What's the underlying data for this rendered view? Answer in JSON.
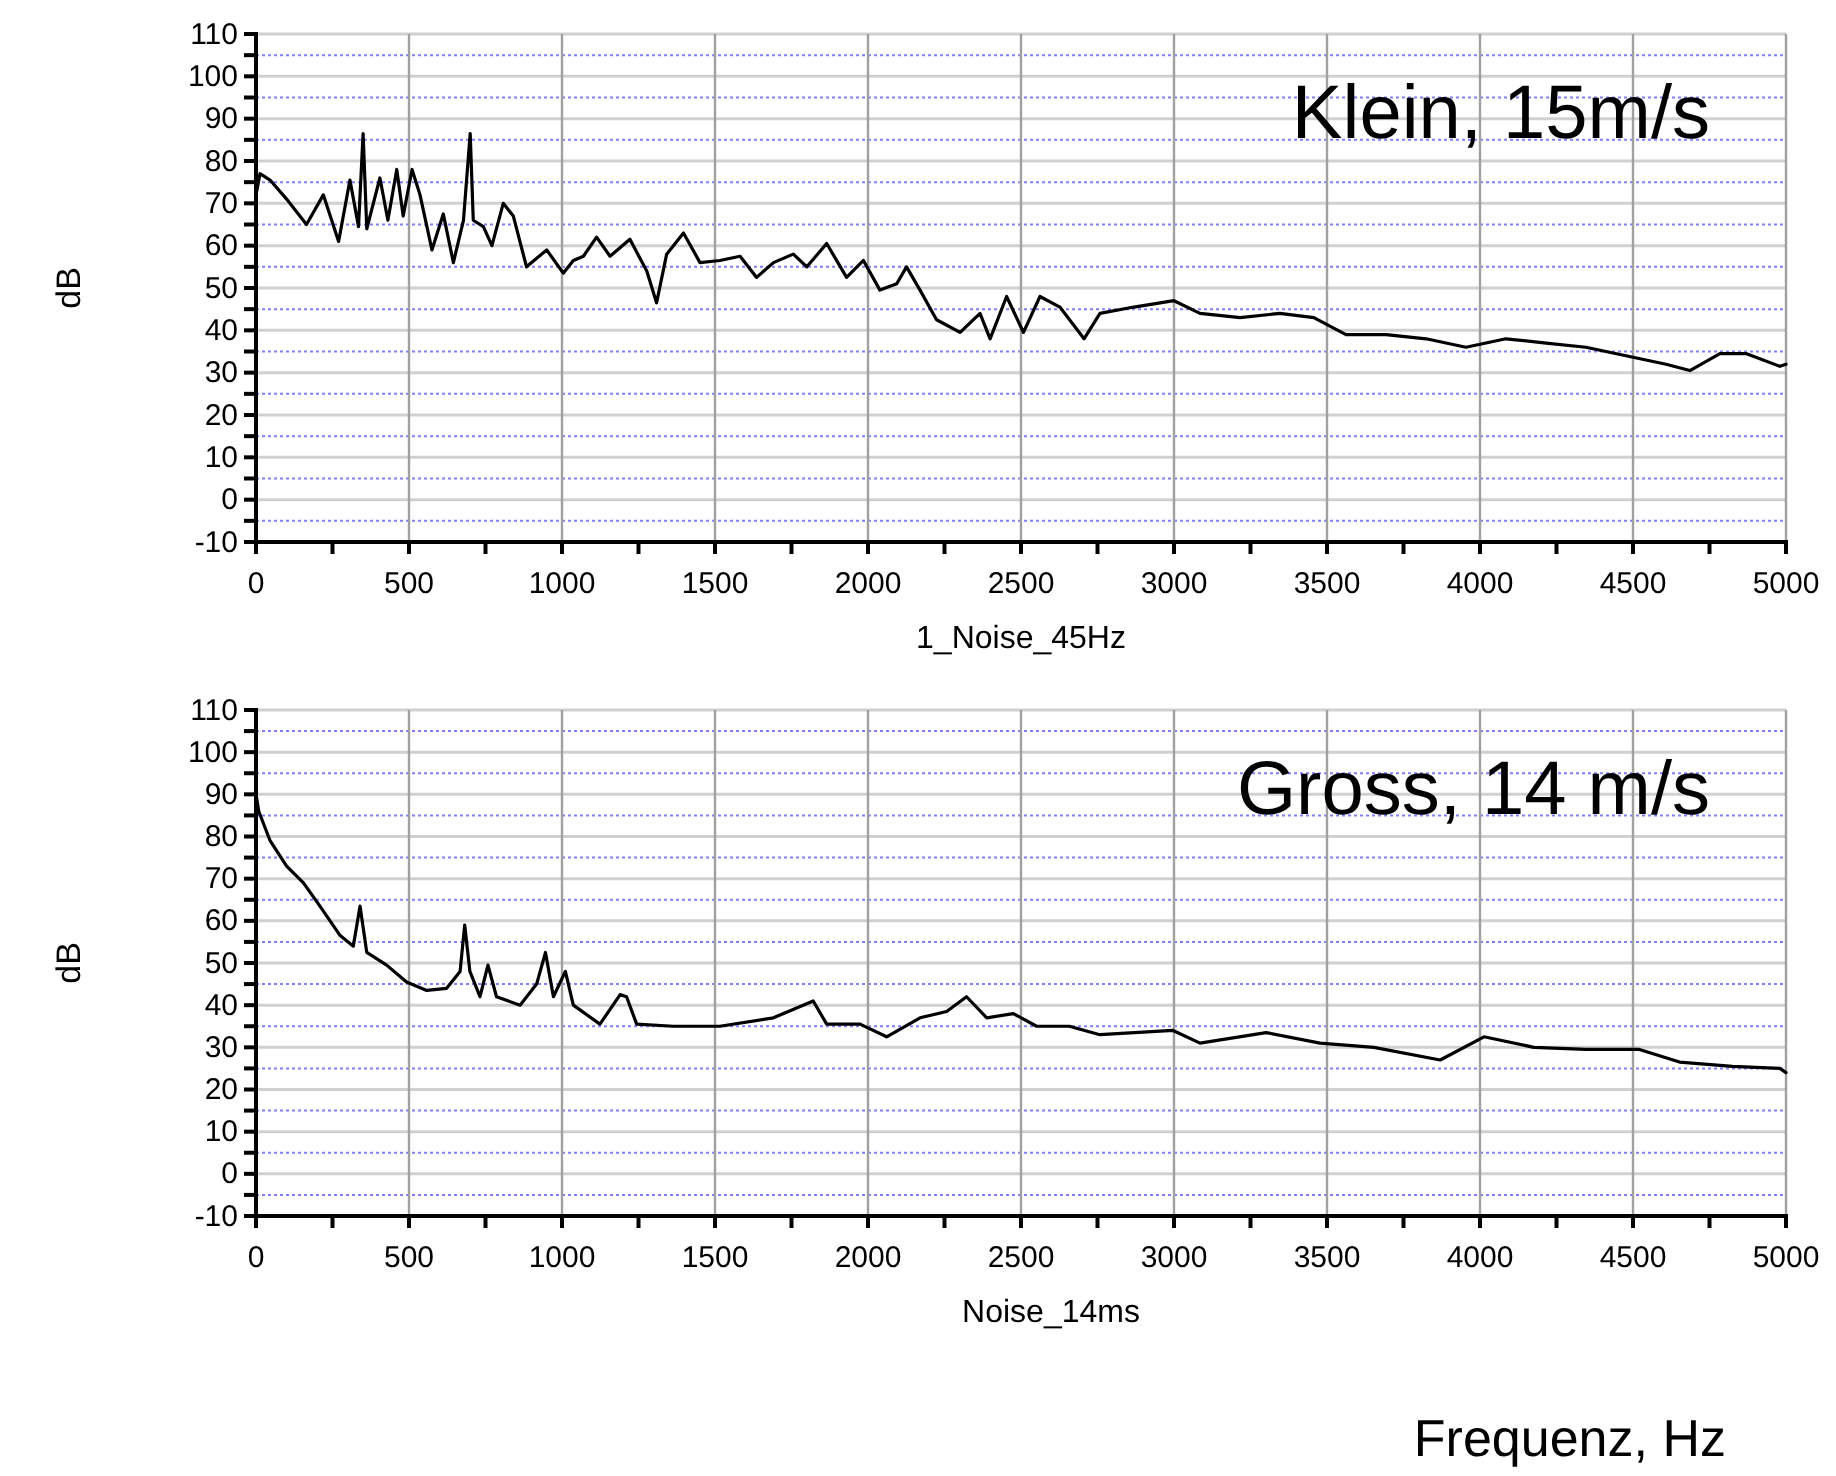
{
  "chart_data": [
    {
      "type": "line",
      "xlabel": "1_Noise_45Hz",
      "ylabel": "dB",
      "annotations": [
        "Klein, 15m/s"
      ],
      "grid": true,
      "marker": "none",
      "line_style": "solid",
      "xlim": [
        0,
        5000
      ],
      "xticks": [
        0,
        {
          "value": 250,
          "label": null
        },
        500,
        {
          "value": 750,
          "label": null
        },
        1000,
        {
          "value": 1250,
          "label": null
        },
        1500,
        {
          "value": 1750,
          "label": null
        },
        2000,
        {
          "value": 2250,
          "label": null
        },
        2500,
        {
          "value": 2750,
          "label": null
        },
        3000,
        {
          "value": 3250,
          "label": null
        },
        3500,
        {
          "value": 3750,
          "label": null
        },
        4000,
        {
          "value": 4250,
          "label": null
        },
        4500,
        {
          "value": 4750,
          "label": null
        },
        5000
      ],
      "ylim": [
        -10,
        110
      ],
      "yticks": [
        -10,
        {
          "value": -5,
          "label": null
        },
        0,
        {
          "value": 5,
          "label": null
        },
        10,
        {
          "value": 15,
          "label": null
        },
        20,
        {
          "value": 25,
          "label": null
        },
        30,
        {
          "value": 35,
          "label": null
        },
        40,
        {
          "value": 45,
          "label": null
        },
        50,
        {
          "value": 55,
          "label": null
        },
        60,
        {
          "value": 65,
          "label": null
        },
        70,
        {
          "value": 75,
          "label": null
        },
        80,
        {
          "value": 85,
          "label": null
        },
        90,
        {
          "value": 95,
          "label": null
        },
        100,
        {
          "value": 105,
          "label": null
        },
        110
      ],
      "series": [
        {
          "color": "#000000",
          "x": [
            0,
            13,
            46,
            100,
            165,
            220,
            270,
            307,
            335,
            350,
            362,
            405,
            431,
            460,
            481,
            510,
            536,
            575,
            612,
            645,
            678,
            700,
            710,
            743,
            771,
            808,
            841,
            884,
            950,
            1004,
            1037,
            1070,
            1113,
            1157,
            1222,
            1277,
            1309,
            1342,
            1397,
            1451,
            1516,
            1582,
            1636,
            1691,
            1756,
            1800,
            1865,
            1930,
            1985,
            2039,
            2094,
            2126,
            2170,
            2224,
            2301,
            2366,
            2399,
            2453,
            2508,
            2562,
            2627,
            2706,
            2758,
            2869,
            3000,
            3085,
            3216,
            3346,
            3457,
            3562,
            3693,
            3824,
            3954,
            4085,
            4216,
            4346,
            4477,
            4608,
            4686,
            4784,
            4869,
            4980,
            5000
          ],
          "values": [
            72,
            77,
            75.5,
            71,
            65,
            72,
            61,
            75.5,
            64.5,
            86.5,
            64,
            76,
            66,
            78,
            67,
            78,
            72,
            59,
            67.5,
            56,
            66,
            86.5,
            66,
            64.5,
            60,
            70,
            67,
            55,
            59,
            53.5,
            56.5,
            57.5,
            62,
            57.5,
            61.5,
            54,
            46.5,
            58,
            63,
            56,
            56.5,
            57.5,
            52.5,
            56,
            58,
            55,
            60.5,
            52.5,
            56.5,
            49.5,
            51,
            55,
            49.5,
            42.5,
            39.5,
            44,
            38,
            48,
            39.5,
            48,
            45.5,
            38,
            44,
            45.5,
            47,
            44,
            43,
            44,
            43,
            39,
            39,
            38,
            36,
            38,
            37,
            36,
            34,
            32,
            30.5,
            34.5,
            34.5,
            31.5,
            32
          ]
        }
      ]
    },
    {
      "type": "line",
      "xlabel": "Noise_14ms",
      "ylabel": "dB",
      "annotations": [
        "Gross, 14 m/s",
        "Frequenz, Hz"
      ],
      "grid": true,
      "marker": "none",
      "line_style": "solid",
      "xlim": [
        0,
        5000
      ],
      "xticks": [
        0,
        {
          "value": 250,
          "label": null
        },
        500,
        {
          "value": 750,
          "label": null
        },
        1000,
        {
          "value": 1250,
          "label": null
        },
        1500,
        {
          "value": 1750,
          "label": null
        },
        2000,
        {
          "value": 2250,
          "label": null
        },
        2500,
        {
          "value": 2750,
          "label": null
        },
        3000,
        {
          "value": 3250,
          "label": null
        },
        3500,
        {
          "value": 3750,
          "label": null
        },
        4000,
        {
          "value": 4250,
          "label": null
        },
        4500,
        {
          "value": 4750,
          "label": null
        },
        5000
      ],
      "ylim": [
        -10,
        110
      ],
      "yticks": [
        -10,
        {
          "value": -5,
          "label": null
        },
        0,
        {
          "value": 5,
          "label": null
        },
        10,
        {
          "value": 15,
          "label": null
        },
        20,
        {
          "value": 25,
          "label": null
        },
        30,
        {
          "value": 35,
          "label": null
        },
        40,
        {
          "value": 45,
          "label": null
        },
        50,
        {
          "value": 55,
          "label": null
        },
        60,
        {
          "value": 65,
          "label": null
        },
        70,
        {
          "value": 75,
          "label": null
        },
        80,
        {
          "value": 85,
          "label": null
        },
        90,
        {
          "value": 95,
          "label": null
        },
        100,
        {
          "value": 105,
          "label": null
        },
        110
      ],
      "series": [
        {
          "color": "#000000",
          "x": [
            0,
            9,
            46,
            100,
            155,
            209,
            275,
            318,
            340,
            362,
            427,
            492,
            558,
            623,
            667,
            682,
            699,
            732,
            758,
            786,
            863,
            917,
            946,
            972,
            1011,
            1037,
            1124,
            1190,
            1211,
            1244,
            1364,
            1516,
            1691,
            1821,
            1865,
            1974,
            2061,
            2170,
            2257,
            2322,
            2388,
            2475,
            2551,
            2658,
            2758,
            2997,
            3085,
            3301,
            3477,
            3653,
            3870,
            4013,
            4176,
            4346,
            4521,
            4652,
            4825,
            4980,
            5000
          ],
          "values": [
            90,
            86,
            79,
            73,
            69,
            63.5,
            56.5,
            54,
            63.5,
            52.5,
            49.5,
            45.5,
            43.5,
            44,
            48,
            59,
            48,
            42,
            49.5,
            42,
            40,
            45,
            52.5,
            42,
            48,
            40,
            35.5,
            42.5,
            42,
            35.5,
            35,
            35,
            37,
            41,
            35.5,
            35.5,
            32.5,
            37,
            38.5,
            42,
            37,
            38,
            35,
            35,
            33,
            34,
            31,
            33.5,
            31,
            30,
            27,
            32.5,
            30,
            29.5,
            29.5,
            26.5,
            25.5,
            25,
            24
          ]
        }
      ]
    }
  ]
}
